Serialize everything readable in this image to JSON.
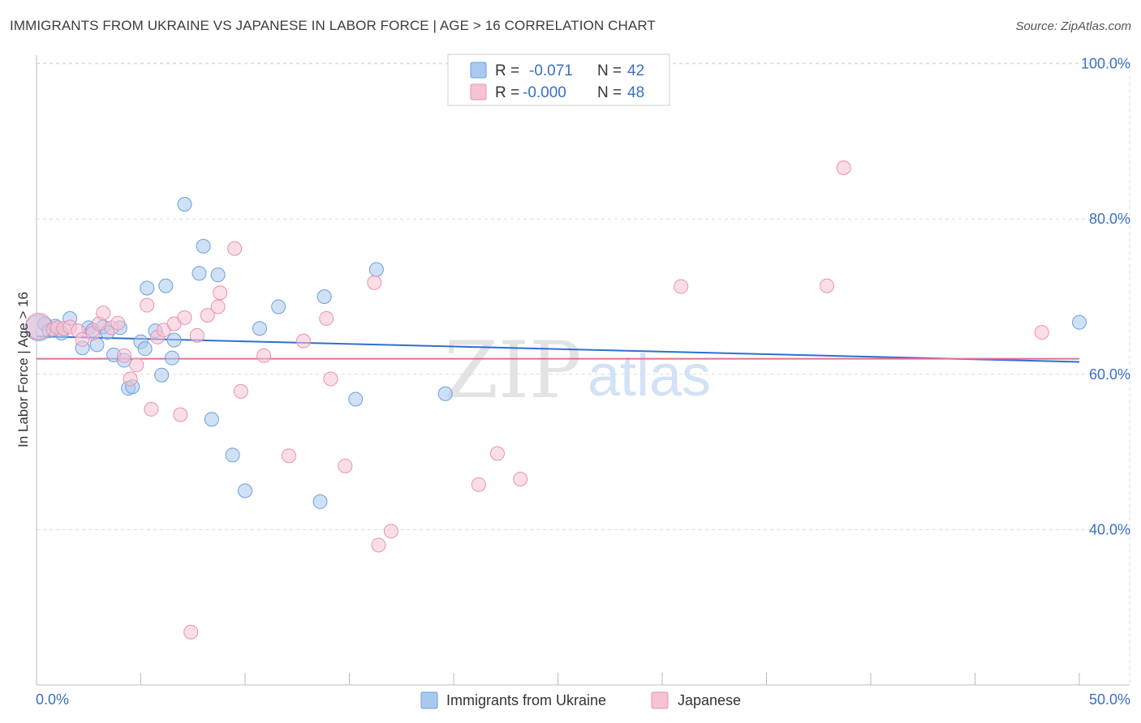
{
  "header": {
    "title": "IMMIGRANTS FROM UKRAINE VS JAPANESE IN LABOR FORCE | AGE > 16 CORRELATION CHART",
    "source": "Source: ZipAtlas.com"
  },
  "watermark": {
    "zip": "ZIP",
    "atlas": "atlas"
  },
  "legend": {
    "rows": [
      {
        "r_label": "R =",
        "r_value": "-0.071",
        "n_label": "N =",
        "n_value": "42",
        "color": "#7fb1ea"
      },
      {
        "r_label": "R =",
        "r_value": "-0.000",
        "n_label": "N =",
        "n_value": "48",
        "color": "#f4a8c1"
      }
    ]
  },
  "colors": {
    "blue_fill": "#a9c9ef",
    "blue_stroke": "#6a9fde",
    "blue_line": "#2f6fcf",
    "pink_fill": "#f6c3d4",
    "pink_stroke": "#e990b0",
    "pink_line": "#e0708f",
    "accent_text": "#3a6fc4",
    "grid": "#dcdcdc"
  },
  "chart_data": {
    "type": "scatter",
    "title": "IMMIGRANTS FROM UKRAINE VS JAPANESE IN LABOR FORCE | AGE > 16 CORRELATION CHART",
    "xlabel": "",
    "ylabel": "In Labor Force | Age > 16",
    "xlim": [
      0,
      50
    ],
    "ylim": [
      20,
      103
    ],
    "x_tick_labels": [
      {
        "value": 0,
        "label": "0.0%"
      },
      {
        "value": 50,
        "label": "50.0%"
      }
    ],
    "y_tick_labels": [
      {
        "value": 40,
        "label": "40.0%"
      },
      {
        "value": 60,
        "label": "60.0%"
      },
      {
        "value": 80,
        "label": "80.0%"
      },
      {
        "value": 100,
        "label": "100.0%"
      }
    ],
    "series": [
      {
        "name": "Immigrants from Ukraine",
        "color": "#7fb1ea",
        "trend": {
          "x0": 0,
          "y0": 64.9,
          "x1": 50,
          "y1": 61.6
        },
        "points": [
          {
            "x": 0.1,
            "y": 66.0,
            "big": true
          },
          {
            "x": 0.4,
            "y": 66.5
          },
          {
            "x": 0.6,
            "y": 65.6
          },
          {
            "x": 0.9,
            "y": 66.2
          },
          {
            "x": 1.2,
            "y": 65.3
          },
          {
            "x": 1.6,
            "y": 67.2
          },
          {
            "x": 2.2,
            "y": 63.4
          },
          {
            "x": 2.5,
            "y": 66.0
          },
          {
            "x": 2.7,
            "y": 65.7
          },
          {
            "x": 2.9,
            "y": 63.8
          },
          {
            "x": 3.2,
            "y": 66.1
          },
          {
            "x": 3.4,
            "y": 65.4
          },
          {
            "x": 3.7,
            "y": 62.5
          },
          {
            "x": 4.0,
            "y": 66.0
          },
          {
            "x": 4.2,
            "y": 61.8
          },
          {
            "x": 4.4,
            "y": 58.2
          },
          {
            "x": 4.6,
            "y": 58.4
          },
          {
            "x": 5.0,
            "y": 64.2
          },
          {
            "x": 5.2,
            "y": 63.3
          },
          {
            "x": 5.3,
            "y": 71.1
          },
          {
            "x": 5.7,
            "y": 65.6
          },
          {
            "x": 6.0,
            "y": 59.9
          },
          {
            "x": 6.2,
            "y": 71.4
          },
          {
            "x": 6.5,
            "y": 62.1
          },
          {
            "x": 6.6,
            "y": 64.4
          },
          {
            "x": 7.1,
            "y": 81.9
          },
          {
            "x": 7.8,
            "y": 73.0
          },
          {
            "x": 8.0,
            "y": 76.5
          },
          {
            "x": 8.4,
            "y": 54.2
          },
          {
            "x": 8.7,
            "y": 72.8
          },
          {
            "x": 9.4,
            "y": 49.6
          },
          {
            "x": 10.0,
            "y": 45.0
          },
          {
            "x": 10.7,
            "y": 65.9
          },
          {
            "x": 11.6,
            "y": 68.7
          },
          {
            "x": 13.6,
            "y": 43.6
          },
          {
            "x": 13.8,
            "y": 70.0
          },
          {
            "x": 15.3,
            "y": 56.8
          },
          {
            "x": 16.3,
            "y": 73.5
          },
          {
            "x": 19.6,
            "y": 57.5
          },
          {
            "x": 50.0,
            "y": 66.7
          }
        ]
      },
      {
        "name": "Japanese",
        "color": "#f4a8c1",
        "trend": {
          "x0": 0,
          "y0": 62.0,
          "x1": 50,
          "y1": 62.0
        },
        "points": [
          {
            "x": 0.1,
            "y": 66.2,
            "big": true
          },
          {
            "x": 0.8,
            "y": 65.8
          },
          {
            "x": 1.0,
            "y": 66.0
          },
          {
            "x": 1.3,
            "y": 65.9
          },
          {
            "x": 1.6,
            "y": 66.1
          },
          {
            "x": 2.0,
            "y": 65.6
          },
          {
            "x": 2.2,
            "y": 64.5
          },
          {
            "x": 2.7,
            "y": 65.3
          },
          {
            "x": 3.0,
            "y": 66.5
          },
          {
            "x": 3.2,
            "y": 67.9
          },
          {
            "x": 3.6,
            "y": 66.0
          },
          {
            "x": 3.9,
            "y": 66.6
          },
          {
            "x": 4.2,
            "y": 62.4
          },
          {
            "x": 4.5,
            "y": 59.4
          },
          {
            "x": 4.8,
            "y": 61.2
          },
          {
            "x": 5.3,
            "y": 68.9
          },
          {
            "x": 5.5,
            "y": 55.5
          },
          {
            "x": 5.8,
            "y": 64.8
          },
          {
            "x": 6.1,
            "y": 65.7
          },
          {
            "x": 6.6,
            "y": 66.5
          },
          {
            "x": 6.9,
            "y": 54.8
          },
          {
            "x": 7.1,
            "y": 67.3
          },
          {
            "x": 7.4,
            "y": 26.8
          },
          {
            "x": 7.7,
            "y": 65.0
          },
          {
            "x": 8.2,
            "y": 67.6
          },
          {
            "x": 8.7,
            "y": 68.7
          },
          {
            "x": 8.8,
            "y": 70.5
          },
          {
            "x": 9.5,
            "y": 76.2
          },
          {
            "x": 9.8,
            "y": 57.8
          },
          {
            "x": 10.9,
            "y": 62.4
          },
          {
            "x": 12.1,
            "y": 49.5
          },
          {
            "x": 12.8,
            "y": 64.3
          },
          {
            "x": 13.9,
            "y": 67.2
          },
          {
            "x": 14.1,
            "y": 59.4
          },
          {
            "x": 14.8,
            "y": 48.2
          },
          {
            "x": 16.2,
            "y": 71.8
          },
          {
            "x": 16.4,
            "y": 38.0
          },
          {
            "x": 17.0,
            "y": 39.8
          },
          {
            "x": 21.2,
            "y": 45.8
          },
          {
            "x": 22.1,
            "y": 49.8
          },
          {
            "x": 23.2,
            "y": 46.5
          },
          {
            "x": 30.9,
            "y": 71.3
          },
          {
            "x": 37.9,
            "y": 71.4
          },
          {
            "x": 38.7,
            "y": 86.6
          },
          {
            "x": 48.2,
            "y": 65.4
          }
        ]
      }
    ]
  }
}
